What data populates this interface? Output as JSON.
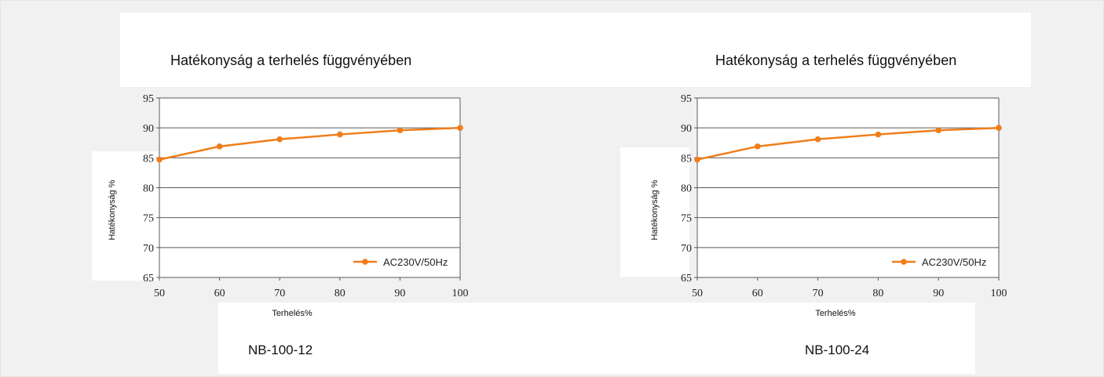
{
  "chart_data": [
    {
      "type": "line",
      "title": "Hatékonyság a terhelés függvényében",
      "model": "NB-100-12",
      "xlabel": "Terhelés%",
      "ylabel": "Hatékonyság %",
      "xlim": [
        50,
        100
      ],
      "ylim": [
        65,
        95
      ],
      "x_ticks": [
        50,
        60,
        70,
        80,
        90,
        100
      ],
      "y_ticks": [
        65,
        70,
        75,
        80,
        85,
        90,
        95
      ],
      "grid": "horizontal",
      "legend_position": "bottom-right",
      "series": [
        {
          "name": "AC230V/50Hz",
          "color": "#f07d1a",
          "x": [
            50,
            60,
            70,
            80,
            90,
            100
          ],
          "y": [
            84.7,
            86.9,
            88.1,
            88.9,
            89.6,
            90.0
          ]
        }
      ]
    },
    {
      "type": "line",
      "title": "Hatékonyság a terhelés függvényében",
      "model": "NB-100-24",
      "xlabel": "Terhelés%",
      "ylabel": "Hatékonyság %",
      "xlim": [
        50,
        100
      ],
      "ylim": [
        65,
        95
      ],
      "x_ticks": [
        50,
        60,
        70,
        80,
        90,
        100
      ],
      "y_ticks": [
        65,
        70,
        75,
        80,
        85,
        90,
        95
      ],
      "grid": "horizontal",
      "legend_position": "bottom-right",
      "series": [
        {
          "name": "AC230V/50Hz",
          "color": "#f07d1a",
          "x": [
            50,
            60,
            70,
            80,
            90,
            100
          ],
          "y": [
            84.7,
            86.9,
            88.1,
            88.9,
            89.6,
            90.0
          ]
        }
      ]
    }
  ]
}
